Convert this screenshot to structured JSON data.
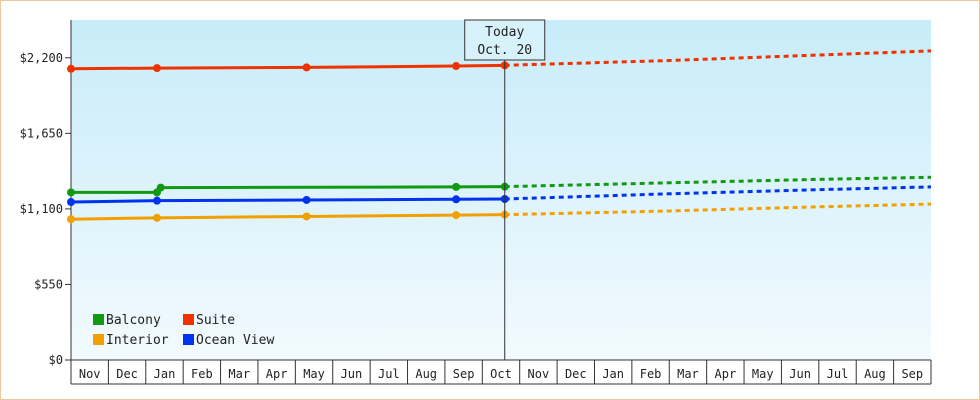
{
  "chart_data": {
    "type": "line",
    "title": "",
    "xlabel": "",
    "ylabel": "",
    "ylim": [
      0,
      2475
    ],
    "y_ticks": [
      {
        "value": 0,
        "label": "$0"
      },
      {
        "value": 550,
        "label": "$550"
      },
      {
        "value": 1100,
        "label": "$1,100"
      },
      {
        "value": 1650,
        "label": "$1,650"
      },
      {
        "value": 2200,
        "label": "$2,200"
      }
    ],
    "x_range": [
      0,
      23
    ],
    "months": [
      "Nov",
      "Dec",
      "Jan",
      "Feb",
      "Mar",
      "Apr",
      "May",
      "Jun",
      "Jul",
      "Aug",
      "Sep",
      "Oct",
      "Nov",
      "Dec",
      "Jan",
      "Feb",
      "Mar",
      "Apr",
      "May",
      "Jun",
      "Jul",
      "Aug",
      "Sep"
    ],
    "today": {
      "x": 11.6,
      "line1": "Today",
      "line2": "Oct. 20"
    },
    "legend_position": "bottom-left",
    "grid": false,
    "series": [
      {
        "name": "Suite",
        "color": "#ee3300",
        "actual": [
          [
            0,
            2120
          ],
          [
            2.3,
            2125
          ],
          [
            6.3,
            2130
          ],
          [
            10.3,
            2140
          ],
          [
            11.6,
            2145
          ]
        ],
        "forecast": [
          [
            11.6,
            2145
          ],
          [
            16,
            2180
          ],
          [
            20,
            2220
          ],
          [
            23,
            2250
          ]
        ]
      },
      {
        "name": "Balcony",
        "color": "#119911",
        "actual": [
          [
            0,
            1220
          ],
          [
            2.3,
            1220
          ],
          [
            2.4,
            1255
          ],
          [
            10.3,
            1260
          ],
          [
            11.6,
            1262
          ]
        ],
        "forecast": [
          [
            11.6,
            1262
          ],
          [
            16,
            1290
          ],
          [
            20,
            1315
          ],
          [
            23,
            1330
          ]
        ]
      },
      {
        "name": "Ocean View",
        "color": "#0033ee",
        "actual": [
          [
            0,
            1150
          ],
          [
            2.3,
            1160
          ],
          [
            6.3,
            1165
          ],
          [
            10.3,
            1170
          ],
          [
            11.6,
            1172
          ]
        ],
        "forecast": [
          [
            11.6,
            1172
          ],
          [
            16,
            1210
          ],
          [
            20,
            1240
          ],
          [
            23,
            1260
          ]
        ]
      },
      {
        "name": "Interior",
        "color": "#f2a000",
        "actual": [
          [
            0,
            1025
          ],
          [
            2.3,
            1035
          ],
          [
            6.3,
            1045
          ],
          [
            10.3,
            1055
          ],
          [
            11.6,
            1058
          ]
        ],
        "forecast": [
          [
            11.6,
            1058
          ],
          [
            16,
            1085
          ],
          [
            20,
            1115
          ],
          [
            23,
            1135
          ]
        ]
      }
    ],
    "legend": [
      {
        "name": "Balcony",
        "color": "#119911"
      },
      {
        "name": "Suite",
        "color": "#ee3300"
      },
      {
        "name": "Interior",
        "color": "#f2a000"
      },
      {
        "name": "Ocean View",
        "color": "#0033ee"
      }
    ]
  }
}
